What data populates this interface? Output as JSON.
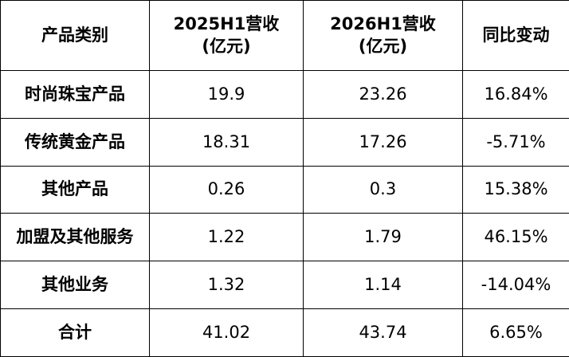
{
  "table": {
    "header": [
      "产品类别",
      "2025H1营收\n(亿元)",
      "2026H1营收\n(亿元)",
      "同比变动"
    ],
    "rows": [
      [
        "时尚珠宝产品",
        "19.9",
        "23.26",
        "16.84%"
      ],
      [
        "传统黄金产品",
        "18.31",
        "17.26",
        "-5.71%"
      ],
      [
        "其他产品",
        "0.26",
        "0.3",
        "15.38%"
      ],
      [
        "加盟及其他服务",
        "1.22",
        "1.79",
        "46.15%"
      ],
      [
        "其他业务",
        "1.32",
        "1.14",
        "-14.04%"
      ],
      [
        "合计",
        "41.02",
        "43.74",
        "6.65%"
      ]
    ]
  }
}
